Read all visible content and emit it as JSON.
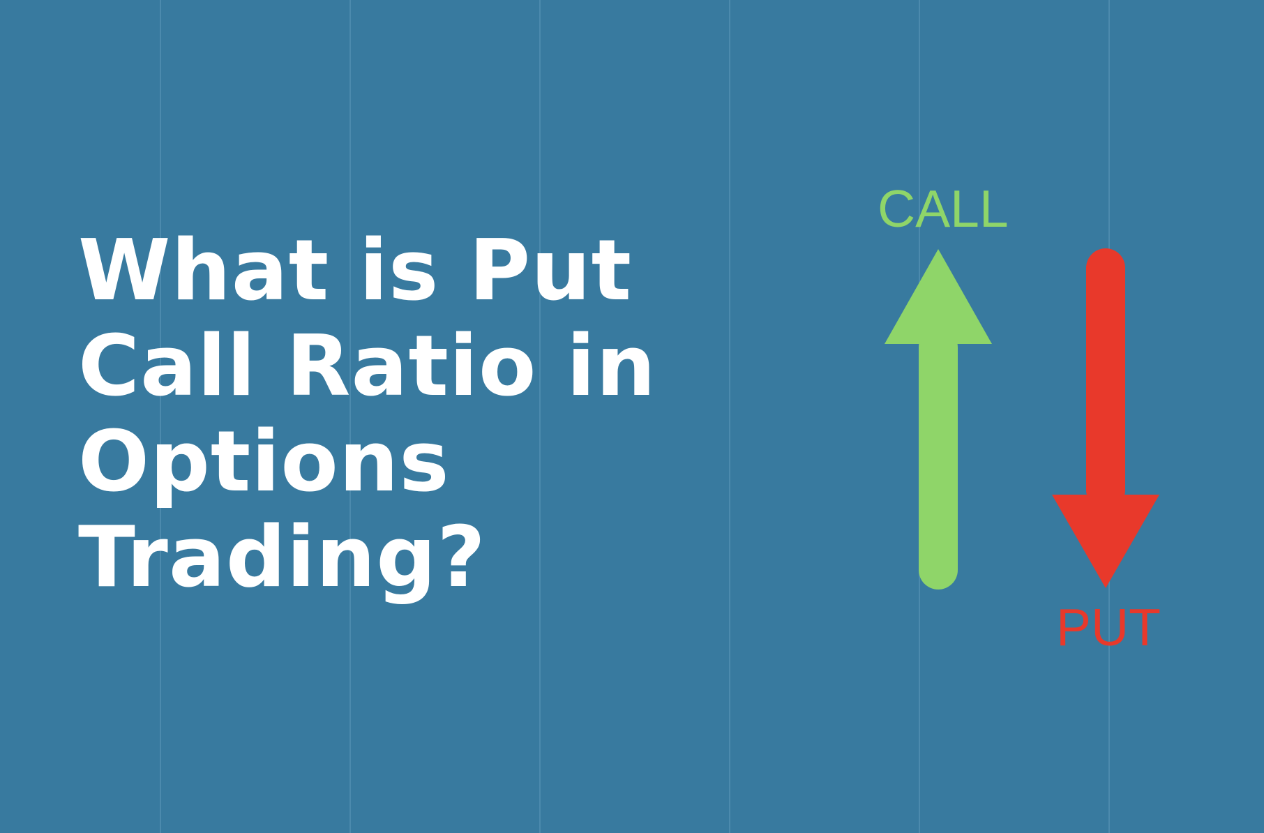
{
  "background_color": "#387a9f",
  "gridline_color": "#4c8aad",
  "title": {
    "lines": [
      "What is Put",
      "Call Ratio in",
      "Options",
      "Trading?"
    ],
    "color": "#ffffff"
  },
  "call": {
    "label": "CALL",
    "color": "#8fd569",
    "direction": "up",
    "icon": "arrow-up-icon"
  },
  "put": {
    "label": "PUT",
    "color": "#e8392b",
    "direction": "down",
    "icon": "arrow-down-icon"
  }
}
